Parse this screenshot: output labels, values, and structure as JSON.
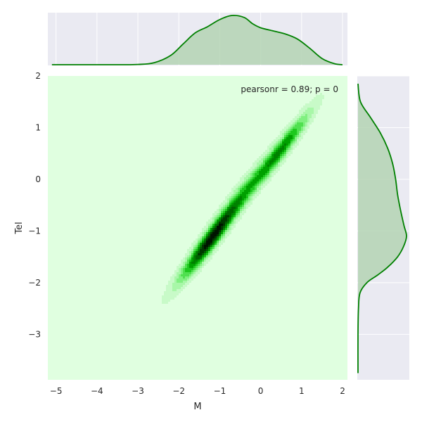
{
  "chart_data": {
    "type": "kde-jointplot",
    "title": "",
    "xlabel": "M",
    "ylabel": "Tel",
    "xlim": [
      -5.2,
      2.12
    ],
    "ylim": [
      -3.88,
      2.0
    ],
    "x_ticks": [
      -5,
      -4,
      -3,
      -2,
      -1,
      0,
      1,
      2
    ],
    "y_ticks": [
      -3,
      -2,
      -1,
      0,
      1,
      2
    ],
    "annotation": "pearsonr = 0.89; p = 0",
    "annotation_position": "top-right",
    "grid": true,
    "colors": {
      "panel_bg": "#eaeaf2",
      "grid": "#ffffff",
      "kde_line": "#008000",
      "kde_fill": "#b4d3b4",
      "joint_bg": "#e0ffe0",
      "contour_levels": [
        "#c8fac8",
        "#a8f7a8",
        "#80f080",
        "#50e050",
        "#1ec81e",
        "#00a000",
        "#008000",
        "#006000",
        "#003800",
        "#001400"
      ]
    },
    "joint_kde": {
      "components": [
        {
          "mx": -1.25,
          "my": -1.2,
          "sx": 0.48,
          "sy": 0.5,
          "rho": 0.95,
          "w": 1.0
        },
        {
          "mx": 0.55,
          "my": 0.62,
          "sx": 0.45,
          "sy": 0.47,
          "rho": 0.95,
          "w": 0.62
        },
        {
          "mx": -0.4,
          "my": -0.25,
          "sx": 0.55,
          "sy": 0.55,
          "rho": 0.95,
          "w": 0.42
        }
      ]
    },
    "marginal_x": {
      "x": [
        -5.1,
        -3.5,
        -3.0,
        -2.6,
        -2.2,
        -1.9,
        -1.6,
        -1.3,
        -1.0,
        -0.7,
        -0.4,
        -0.2,
        0.0,
        0.3,
        0.6,
        0.9,
        1.2,
        1.5,
        1.8,
        2.0
      ],
      "density": [
        0.0,
        0.0,
        0.005,
        0.04,
        0.18,
        0.4,
        0.62,
        0.74,
        0.88,
        0.96,
        0.92,
        0.8,
        0.72,
        0.66,
        0.6,
        0.5,
        0.32,
        0.12,
        0.02,
        0.0
      ]
    },
    "marginal_y": {
      "y": [
        1.85,
        1.5,
        1.2,
        0.9,
        0.6,
        0.3,
        0.0,
        -0.3,
        -0.6,
        -0.9,
        -1.1,
        -1.3,
        -1.5,
        -1.7,
        -1.85,
        -2.0,
        -2.2,
        -2.5,
        -3.0,
        -3.75
      ],
      "density": [
        0.0,
        0.05,
        0.25,
        0.45,
        0.6,
        0.7,
        0.76,
        0.8,
        0.86,
        0.93,
        0.98,
        0.92,
        0.8,
        0.6,
        0.4,
        0.18,
        0.04,
        0.01,
        0.0,
        0.0
      ]
    }
  }
}
